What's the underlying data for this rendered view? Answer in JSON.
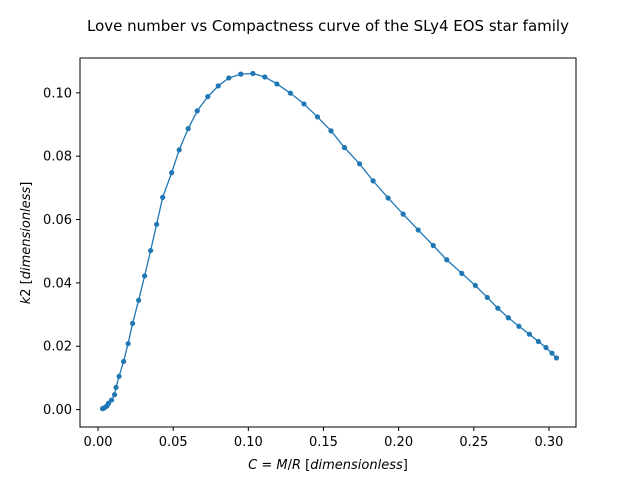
{
  "chart_data": {
    "type": "line",
    "title": "Love number vs Compactness curve of the SLy4 EOS star family",
    "xlabel": "C = M/R [dimensionless]",
    "ylabel": "k2 [dimensionless]",
    "xlim": [
      -0.012,
      0.318
    ],
    "ylim": [
      -0.0055,
      0.111
    ],
    "xticks": [
      0.0,
      0.05,
      0.1,
      0.15,
      0.2,
      0.25,
      0.3
    ],
    "xtick_labels": [
      "0.00",
      "0.05",
      "0.10",
      "0.15",
      "0.20",
      "0.25",
      "0.30"
    ],
    "yticks": [
      0.0,
      0.02,
      0.04,
      0.06,
      0.08,
      0.1
    ],
    "ytick_labels": [
      "0.00",
      "0.02",
      "0.04",
      "0.06",
      "0.08",
      "0.10"
    ],
    "grid": false,
    "legend": "none",
    "line_color": "#1f77b4",
    "marker": "circle",
    "series": [
      {
        "x": [
          0.003,
          0.004,
          0.005,
          0.006,
          0.007,
          0.009,
          0.011,
          0.012,
          0.014,
          0.017,
          0.02,
          0.023,
          0.027,
          0.031,
          0.035,
          0.039,
          0.043,
          0.049,
          0.054,
          0.06,
          0.066,
          0.073,
          0.08,
          0.087,
          0.095,
          0.103,
          0.111,
          0.119,
          0.128,
          0.137,
          0.146,
          0.155,
          0.164,
          0.174,
          0.183,
          0.193,
          0.203,
          0.213,
          0.223,
          0.232,
          0.242,
          0.251,
          0.259,
          0.266,
          0.273,
          0.28,
          0.287,
          0.293,
          0.298,
          0.302,
          0.305
        ],
        "y": [
          0.0003,
          0.0005,
          0.0008,
          0.0012,
          0.002,
          0.003,
          0.0047,
          0.007,
          0.0105,
          0.0152,
          0.0208,
          0.0272,
          0.0345,
          0.0422,
          0.0502,
          0.0585,
          0.067,
          0.0748,
          0.082,
          0.0887,
          0.0943,
          0.0988,
          0.1022,
          0.1047,
          0.1059,
          0.1061,
          0.105,
          0.1028,
          0.0999,
          0.0965,
          0.0924,
          0.088,
          0.0827,
          0.0776,
          0.0722,
          0.0668,
          0.0617,
          0.0567,
          0.0518,
          0.0473,
          0.043,
          0.0392,
          0.0354,
          0.032,
          0.029,
          0.0263,
          0.0238,
          0.0215,
          0.0196,
          0.0178,
          0.0163
        ]
      }
    ]
  }
}
